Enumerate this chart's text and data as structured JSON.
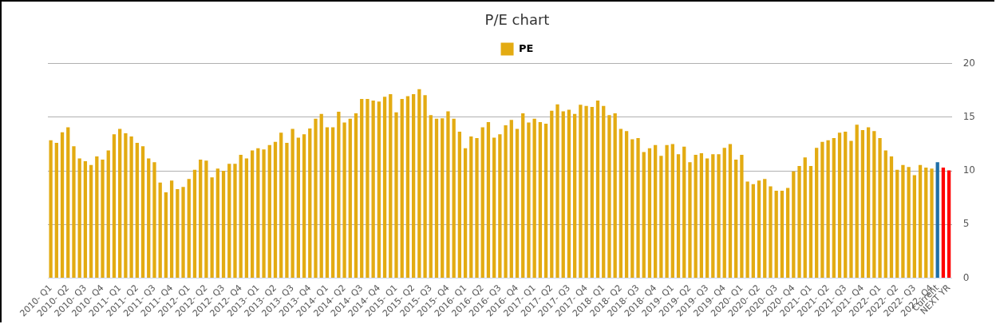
{
  "chart_data": {
    "type": "bar",
    "title": "P/E chart",
    "categories": [
      "2010- Q1",
      null,
      null,
      "2010- Q2",
      null,
      null,
      "2010- Q3",
      null,
      null,
      "2010- Q4",
      null,
      null,
      "2011- Q1",
      null,
      null,
      "2011- Q2",
      null,
      null,
      "2011- Q3",
      null,
      null,
      "2011- Q4",
      null,
      null,
      "2012- Q1",
      null,
      null,
      "2012- Q2",
      null,
      null,
      "2012- Q3",
      null,
      null,
      "2012- Q4",
      null,
      null,
      "2013- Q1",
      null,
      null,
      "2013- Q2",
      null,
      null,
      "2013- Q3",
      null,
      null,
      "2013- Q4",
      null,
      null,
      "2014- Q1",
      null,
      null,
      "2014- Q2",
      null,
      null,
      "2014- Q3",
      null,
      null,
      "2014- Q4",
      null,
      null,
      "2015- Q1",
      null,
      null,
      "2015- Q2",
      null,
      null,
      "2015- Q3",
      null,
      null,
      "2015- Q4",
      null,
      null,
      "2016- Q1",
      null,
      null,
      "2016- Q2",
      null,
      null,
      "2016- Q3",
      null,
      null,
      "2016- Q4",
      null,
      null,
      "2017- Q1",
      null,
      null,
      "2017- Q2",
      null,
      null,
      "2017- Q3",
      null,
      null,
      "2017- Q4",
      null,
      null,
      "2018- Q1",
      null,
      null,
      "2018- Q2",
      null,
      null,
      "2018- Q3",
      null,
      null,
      "2018- Q4",
      null,
      null,
      "2019- Q1",
      null,
      null,
      "2019- Q2",
      null,
      null,
      "2019- Q3",
      null,
      null,
      "2019- Q4",
      null,
      null,
      "2020- Q1",
      null,
      null,
      "2020- Q2",
      null,
      null,
      "2020- Q3",
      null,
      null,
      "2020- Q4",
      null,
      null,
      "2021- Q1",
      null,
      null,
      "2021- Q2",
      null,
      null,
      "2021- Q3",
      null,
      null,
      "2021- Q4",
      null,
      null,
      "2022- Q1",
      null,
      null,
      "2022- Q2",
      null,
      null,
      "2022- Q3",
      null,
      null,
      "2022- Q4",
      "Current",
      null,
      "NEXT YR"
    ],
    "series": [
      {
        "name": "PE",
        "color": "#e3ab12",
        "colors": [
          "#e3ab12",
          "#e3ab12",
          "#e3ab12",
          "#e3ab12",
          "#e3ab12",
          "#e3ab12",
          "#e3ab12",
          "#e3ab12",
          "#e3ab12",
          "#e3ab12",
          "#e3ab12",
          "#e3ab12",
          "#e3ab12",
          "#e3ab12",
          "#e3ab12",
          "#e3ab12",
          "#e3ab12",
          "#e3ab12",
          "#e3ab12",
          "#e3ab12",
          "#e3ab12",
          "#e3ab12",
          "#e3ab12",
          "#e3ab12",
          "#e3ab12",
          "#e3ab12",
          "#e3ab12",
          "#e3ab12",
          "#e3ab12",
          "#e3ab12",
          "#e3ab12",
          "#e3ab12",
          "#e3ab12",
          "#e3ab12",
          "#e3ab12",
          "#e3ab12",
          "#e3ab12",
          "#e3ab12",
          "#e3ab12",
          "#e3ab12",
          "#e3ab12",
          "#e3ab12",
          "#e3ab12",
          "#e3ab12",
          "#e3ab12",
          "#e3ab12",
          "#e3ab12",
          "#e3ab12",
          "#e3ab12",
          "#e3ab12",
          "#e3ab12",
          "#e3ab12",
          "#e3ab12",
          "#e3ab12",
          "#e3ab12",
          "#e3ab12",
          "#e3ab12",
          "#e3ab12",
          "#e3ab12",
          "#e3ab12",
          "#e3ab12",
          "#e3ab12",
          "#e3ab12",
          "#e3ab12",
          "#e3ab12",
          "#e3ab12",
          "#e3ab12",
          "#e3ab12",
          "#e3ab12",
          "#e3ab12",
          "#e3ab12",
          "#e3ab12",
          "#e3ab12",
          "#e3ab12",
          "#e3ab12",
          "#e3ab12",
          "#e3ab12",
          "#e3ab12",
          "#e3ab12",
          "#e3ab12",
          "#e3ab12",
          "#e3ab12",
          "#e3ab12",
          "#e3ab12",
          "#e3ab12",
          "#e3ab12",
          "#e3ab12",
          "#e3ab12",
          "#e3ab12",
          "#e3ab12",
          "#e3ab12",
          "#e3ab12",
          "#e3ab12",
          "#e3ab12",
          "#e3ab12",
          "#e3ab12",
          "#e3ab12",
          "#e3ab12",
          "#e3ab12",
          "#e3ab12",
          "#e3ab12",
          "#e3ab12",
          "#e3ab12",
          "#e3ab12",
          "#e3ab12",
          "#e3ab12",
          "#e3ab12",
          "#e3ab12",
          "#e3ab12",
          "#e3ab12",
          "#e3ab12",
          "#e3ab12",
          "#e3ab12",
          "#e3ab12",
          "#e3ab12",
          "#e3ab12",
          "#e3ab12",
          "#e3ab12",
          "#e3ab12",
          "#e3ab12",
          "#e3ab12",
          "#e3ab12",
          "#e3ab12",
          "#e3ab12",
          "#e3ab12",
          "#e3ab12",
          "#e3ab12",
          "#e3ab12",
          "#e3ab12",
          "#e3ab12",
          "#e3ab12",
          "#e3ab12",
          "#e3ab12",
          "#e3ab12",
          "#e3ab12",
          "#e3ab12",
          "#e3ab12",
          "#e3ab12",
          "#e3ab12",
          "#e3ab12",
          "#e3ab12",
          "#e3ab12",
          "#e3ab12",
          "#e3ab12",
          "#e3ab12",
          "#e3ab12",
          "#e3ab12",
          "#e3ab12",
          "#e3ab12",
          "#e3ab12",
          "#e3ab12",
          "#e3ab12",
          "#e3ab12",
          "#e3ab12",
          "#1f6fa8",
          "#ff0000",
          "#ff0000"
        ],
        "values": [
          12.85,
          12.6,
          13.6,
          14.05,
          12.3,
          11.15,
          10.9,
          10.55,
          11.35,
          11.05,
          11.9,
          13.4,
          13.9,
          13.5,
          13.2,
          12.6,
          12.3,
          11.15,
          10.8,
          8.9,
          8.0,
          9.1,
          8.3,
          8.5,
          9.25,
          10.1,
          11.05,
          10.95,
          9.4,
          10.2,
          10.0,
          10.65,
          10.65,
          11.5,
          11.15,
          11.9,
          12.1,
          12.0,
          12.4,
          12.7,
          13.55,
          12.6,
          13.9,
          13.1,
          13.4,
          13.95,
          14.85,
          15.3,
          14.05,
          14.05,
          15.5,
          14.5,
          14.85,
          15.35,
          16.7,
          16.7,
          16.55,
          16.45,
          16.9,
          17.15,
          15.45,
          16.7,
          16.95,
          17.15,
          17.6,
          17.05,
          15.2,
          14.85,
          14.9,
          15.55,
          14.85,
          13.65,
          12.1,
          13.2,
          13.05,
          14.05,
          14.55,
          13.1,
          13.4,
          14.25,
          14.75,
          13.9,
          15.35,
          14.5,
          14.85,
          14.55,
          14.4,
          15.6,
          16.2,
          15.55,
          15.7,
          15.3,
          16.15,
          16.05,
          15.95,
          16.55,
          16.05,
          15.2,
          15.35,
          13.9,
          13.7,
          12.95,
          13.05,
          11.75,
          12.1,
          12.4,
          11.4,
          12.4,
          12.5,
          11.55,
          12.25,
          10.8,
          11.5,
          11.65,
          11.15,
          11.55,
          11.55,
          12.15,
          12.5,
          11.05,
          11.5,
          9.0,
          8.75,
          9.1,
          9.25,
          8.55,
          8.15,
          8.15,
          8.4,
          9.95,
          10.45,
          11.25,
          10.45,
          12.15,
          12.7,
          12.85,
          13.05,
          13.55,
          13.65,
          12.8,
          14.3,
          13.8,
          14.05,
          13.7,
          13.05,
          11.9,
          11.35,
          10.1,
          10.55,
          10.35,
          9.6,
          10.55,
          10.3,
          10.2,
          10.8,
          10.3,
          10.05
        ]
      }
    ],
    "ylim": [
      0,
      20
    ],
    "yticks": [
      0,
      5,
      10,
      15,
      20
    ],
    "grid": "y",
    "legend": "top"
  }
}
